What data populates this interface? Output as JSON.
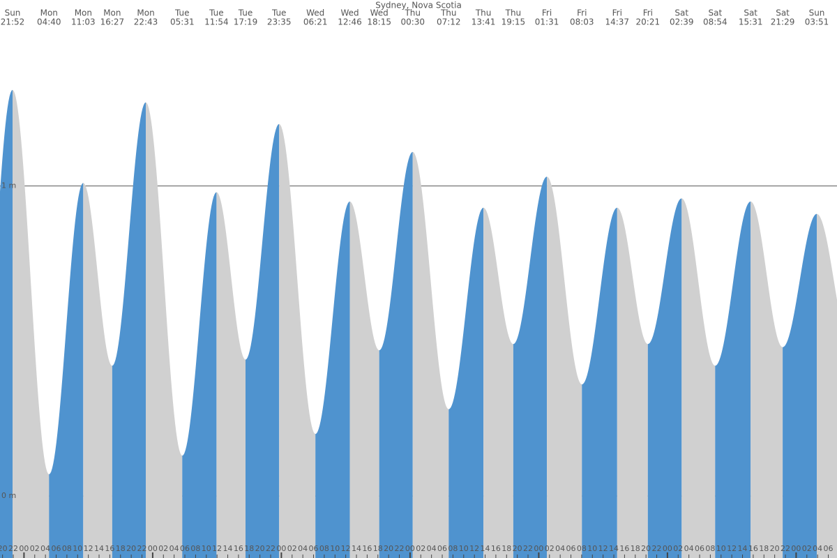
{
  "chart_data": {
    "type": "area",
    "title": "Sydney, Nova Scotia",
    "extremes": [
      {
        "day": "Sun",
        "time": "21:52",
        "height": 1.31
      },
      {
        "day": "Mon",
        "time": "04:40",
        "height": 0.07
      },
      {
        "day": "Mon",
        "time": "11:03",
        "height": 1.01
      },
      {
        "day": "Mon",
        "time": "16:27",
        "height": 0.42
      },
      {
        "day": "Mon",
        "time": "22:43",
        "height": 1.27
      },
      {
        "day": "Tue",
        "time": "05:31",
        "height": 0.13
      },
      {
        "day": "Tue",
        "time": "11:54",
        "height": 0.98
      },
      {
        "day": "Tue",
        "time": "17:19",
        "height": 0.44
      },
      {
        "day": "Tue",
        "time": "23:35",
        "height": 1.2
      },
      {
        "day": "Wed",
        "time": "06:21",
        "height": 0.2
      },
      {
        "day": "Wed",
        "time": "12:46",
        "height": 0.95
      },
      {
        "day": "Wed",
        "time": "18:15",
        "height": 0.47
      },
      {
        "day": "Thu",
        "time": "00:30",
        "height": 1.11
      },
      {
        "day": "Thu",
        "time": "07:12",
        "height": 0.28
      },
      {
        "day": "Thu",
        "time": "13:41",
        "height": 0.93
      },
      {
        "day": "Thu",
        "time": "19:15",
        "height": 0.49
      },
      {
        "day": "Fri",
        "time": "01:31",
        "height": 1.03
      },
      {
        "day": "Fri",
        "time": "08:03",
        "height": 0.36
      },
      {
        "day": "Fri",
        "time": "14:37",
        "height": 0.93
      },
      {
        "day": "Fri",
        "time": "20:21",
        "height": 0.49
      },
      {
        "day": "Sat",
        "time": "02:39",
        "height": 0.96
      },
      {
        "day": "Sat",
        "time": "08:54",
        "height": 0.42
      },
      {
        "day": "Sat",
        "time": "15:31",
        "height": 0.95
      },
      {
        "day": "Sat",
        "time": "21:29",
        "height": 0.48
      },
      {
        "day": "Sun",
        "time": "03:51",
        "height": 0.91
      }
    ],
    "ylim": [
      -0.2,
      1.6
    ],
    "yticks": [
      {
        "value": 0,
        "label": "0 m"
      },
      {
        "value": 1,
        "label": "1 m"
      }
    ],
    "xticks": [
      "20",
      "22",
      "00",
      "02",
      "04",
      "06",
      "08",
      "10",
      "12",
      "14",
      "16",
      "18",
      "20",
      "22",
      "00",
      "02",
      "04",
      "06",
      "08",
      "10",
      "12",
      "14",
      "16",
      "18",
      "20",
      "22",
      "00",
      "02",
      "04",
      "06",
      "08",
      "10",
      "12",
      "14",
      "16",
      "18",
      "20",
      "22",
      "00",
      "02",
      "04",
      "06",
      "08",
      "10",
      "12",
      "14",
      "16",
      "18",
      "20",
      "22",
      "00",
      "02",
      "04",
      "06",
      "08",
      "10",
      "12",
      "14",
      "16",
      "18",
      "20",
      "22",
      "00",
      "02",
      "04",
      "06",
      "08",
      "10",
      "12",
      "14",
      "16",
      "18",
      "20",
      "22",
      "00",
      "02",
      "04",
      "06"
    ],
    "rising_color": "#4f93cf",
    "falling_color": "#d0d0d0",
    "grid_color": "#555555"
  }
}
